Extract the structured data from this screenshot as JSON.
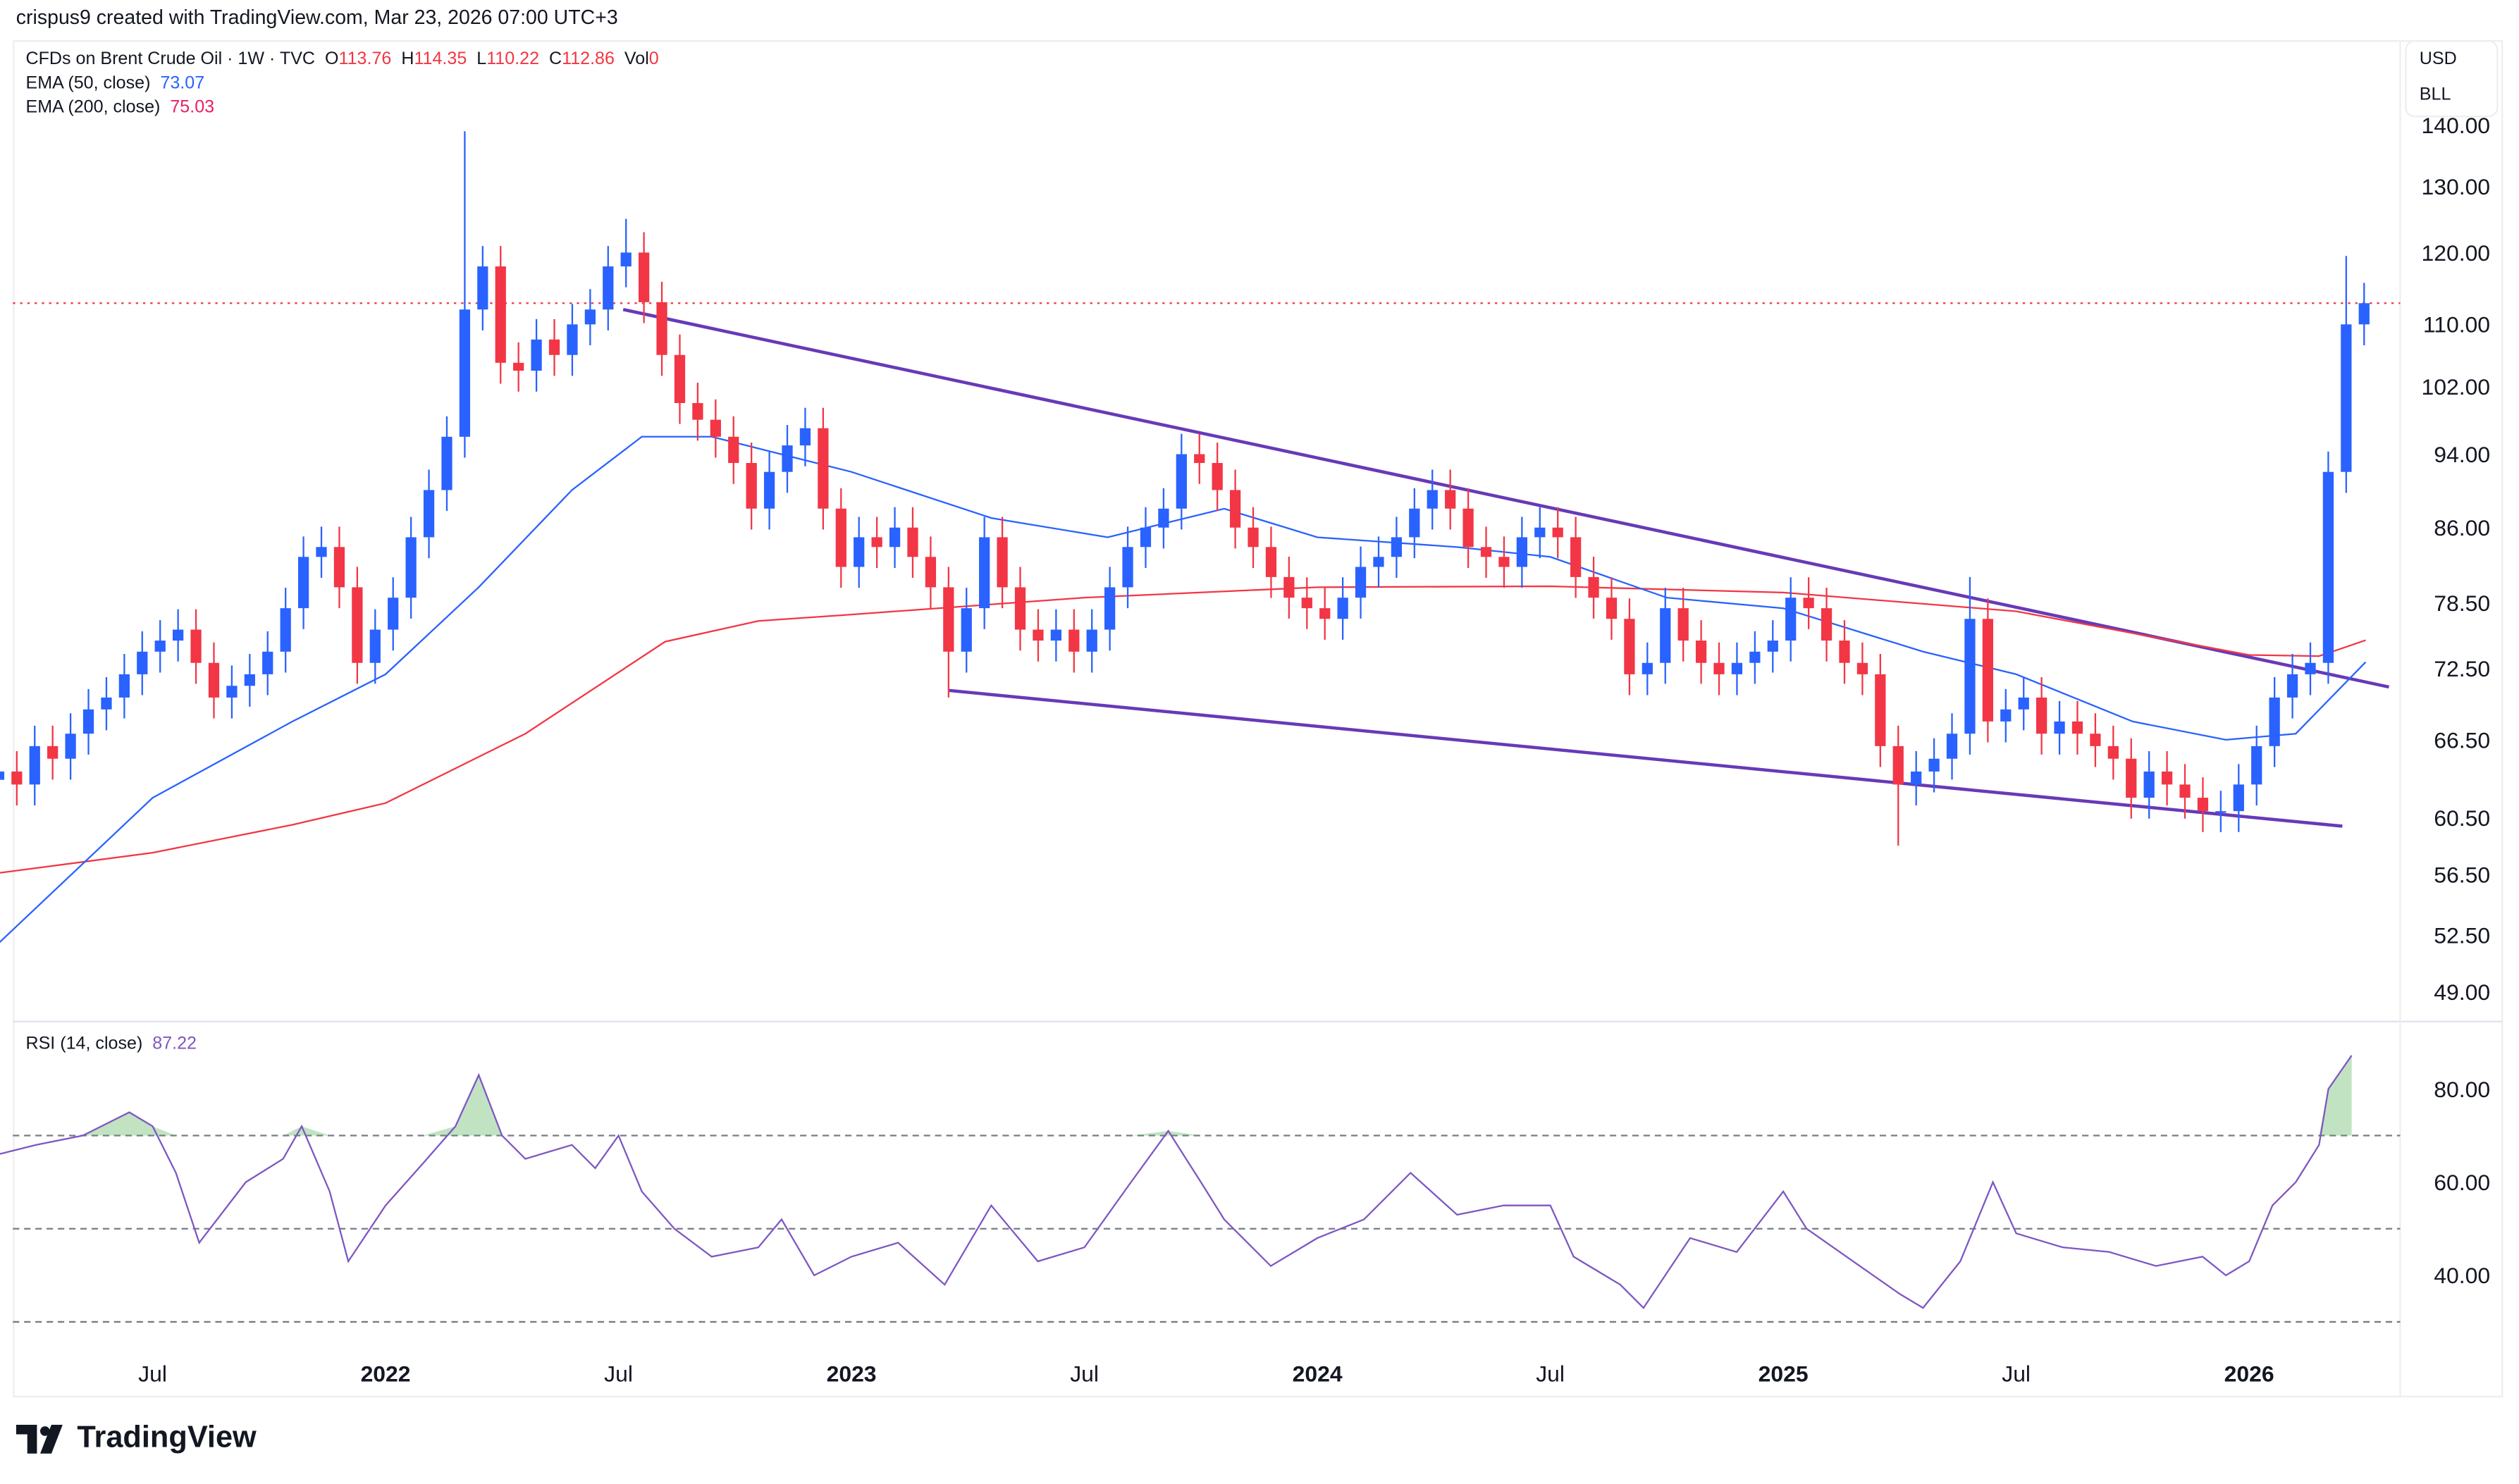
{
  "credit": "crispus9 created with TradingView.com, Mar 23, 2026 07:00 UTC+3",
  "legend": {
    "symbol": "CFDs on Brent Crude Oil · 1W · TVC",
    "o_label": "O",
    "o": "113.76",
    "h_label": "H",
    "h": "114.35",
    "l_label": "L",
    "l": "110.22",
    "c_label": "C",
    "c": "112.86",
    "vol_label": "Vol",
    "vol": "0",
    "ema50_label": "EMA (50, close)",
    "ema50": "73.07",
    "ema200_label": "EMA (200, close)",
    "ema200": "75.03",
    "rsi_label": "RSI (14, close)",
    "rsi": "87.22"
  },
  "units": {
    "currency": "USD",
    "unit": "BLL"
  },
  "logo": "TradingView",
  "colors": {
    "up": "#2962ff",
    "down": "#f23645",
    "ema50": "#2962ff",
    "ema200": "#f23645",
    "trend": "#673ab7",
    "rsi": "#7e57c2"
  },
  "chart_data": [
    {
      "type": "candlestick",
      "title": "CFDs on Brent Crude Oil · 1W · TVC",
      "scale": "log",
      "ylim": [
        47,
        150
      ],
      "y_ticks": [
        "140.00",
        "130.00",
        "120.00",
        "110.00",
        "102.00",
        "94.00",
        "86.00",
        "78.50",
        "72.50",
        "66.50",
        "60.50",
        "56.50",
        "52.50",
        "49.00"
      ],
      "x_ticks": [
        {
          "label": "Jul",
          "t": 2021.5
        },
        {
          "label": "2022",
          "t": 2022.0,
          "bold": true
        },
        {
          "label": "Jul",
          "t": 2022.5
        },
        {
          "label": "2023",
          "t": 2023.0,
          "bold": true
        },
        {
          "label": "Jul",
          "t": 2023.5
        },
        {
          "label": "2024",
          "t": 2024.0,
          "bold": true
        },
        {
          "label": "Jul",
          "t": 2024.5
        },
        {
          "label": "2025",
          "t": 2025.0,
          "bold": true
        },
        {
          "label": "Jul",
          "t": 2025.5
        },
        {
          "label": "2026",
          "t": 2026.0,
          "bold": true
        }
      ],
      "start": 2021.17,
      "step_years": 0.03846,
      "closes": [
        64,
        63,
        66,
        65,
        67,
        69,
        70,
        72,
        74,
        75,
        76,
        73,
        70,
        71,
        72,
        74,
        78,
        83,
        84,
        80,
        73,
        76,
        79,
        85,
        90,
        96,
        112,
        118,
        105,
        104,
        108,
        106,
        110,
        112,
        118,
        120,
        113,
        106,
        100,
        98,
        96,
        93,
        88,
        92,
        95,
        97,
        88,
        82,
        85,
        84,
        86,
        83,
        80,
        74,
        78,
        85,
        80,
        76,
        75,
        76,
        74,
        76,
        80,
        84,
        86,
        88,
        94,
        93,
        90,
        86,
        84,
        81,
        79,
        78,
        77,
        79,
        82,
        83,
        85,
        88,
        90,
        88,
        84,
        83,
        82,
        85,
        86,
        85,
        81,
        79,
        77,
        72,
        73,
        78,
        75,
        73,
        72,
        73,
        74,
        75,
        79,
        78,
        75,
        73,
        72,
        66,
        63,
        64,
        65,
        67,
        77,
        68,
        69,
        70,
        67,
        68,
        67,
        66,
        65,
        62,
        64,
        63,
        62,
        61,
        61,
        63,
        66,
        70,
        72,
        73,
        92,
        110,
        112.86
      ],
      "notable_highs": {
        "26": 139,
        "35": 125,
        "110": 81,
        "131": 119.5
      },
      "notable_lows": {
        "53": 70,
        "106": 58.5
      },
      "last_price": 112.86,
      "ema50": [
        [
          2021.17,
          52
        ],
        [
          2021.5,
          62
        ],
        [
          2021.8,
          68
        ],
        [
          2022.0,
          72
        ],
        [
          2022.2,
          80
        ],
        [
          2022.4,
          90
        ],
        [
          2022.55,
          96
        ],
        [
          2022.7,
          96
        ],
        [
          2023.0,
          92
        ],
        [
          2023.3,
          87
        ],
        [
          2023.55,
          85
        ],
        [
          2023.8,
          88
        ],
        [
          2024.0,
          85
        ],
        [
          2024.3,
          84
        ],
        [
          2024.5,
          83
        ],
        [
          2024.75,
          79
        ],
        [
          2025.0,
          78
        ],
        [
          2025.3,
          74
        ],
        [
          2025.5,
          72
        ],
        [
          2025.75,
          68
        ],
        [
          2025.95,
          66.5
        ],
        [
          2026.1,
          67
        ],
        [
          2026.25,
          73.07
        ]
      ],
      "ema200": [
        [
          2021.17,
          56.6
        ],
        [
          2021.5,
          58
        ],
        [
          2021.8,
          60
        ],
        [
          2022.0,
          61.6
        ],
        [
          2022.3,
          67
        ],
        [
          2022.6,
          74.9
        ],
        [
          2022.8,
          76.8
        ],
        [
          2023.0,
          77.4
        ],
        [
          2023.5,
          79
        ],
        [
          2024.0,
          80
        ],
        [
          2024.5,
          80.1
        ],
        [
          2025.0,
          79.5
        ],
        [
          2025.5,
          77.7
        ],
        [
          2026.0,
          73.7
        ],
        [
          2026.15,
          73.6
        ],
        [
          2026.25,
          75.03
        ]
      ],
      "trendlines": [
        {
          "name": "upper",
          "from": [
            2022.51,
            112
          ],
          "to": [
            2026.3,
            70.9
          ]
        },
        {
          "name": "lower",
          "from": [
            2023.21,
            70.6
          ],
          "to": [
            2026.2,
            59.9
          ]
        }
      ]
    },
    {
      "type": "line",
      "title": "RSI (14, close)",
      "ylim": [
        30,
        87
      ],
      "y_ticks": [
        "80.00",
        "60.00",
        "40.00"
      ],
      "bands": [
        70,
        50,
        30
      ],
      "points": [
        [
          2021.17,
          66
        ],
        [
          2021.25,
          68
        ],
        [
          2021.35,
          70
        ],
        [
          2021.45,
          75
        ],
        [
          2021.5,
          72
        ],
        [
          2021.55,
          62
        ],
        [
          2021.6,
          47
        ],
        [
          2021.7,
          60
        ],
        [
          2021.78,
          65
        ],
        [
          2021.82,
          72
        ],
        [
          2021.88,
          58
        ],
        [
          2021.92,
          43
        ],
        [
          2022.0,
          55
        ],
        [
          2022.08,
          64
        ],
        [
          2022.15,
          72
        ],
        [
          2022.2,
          83
        ],
        [
          2022.25,
          70
        ],
        [
          2022.3,
          65
        ],
        [
          2022.4,
          68
        ],
        [
          2022.45,
          63
        ],
        [
          2022.5,
          70
        ],
        [
          2022.55,
          58
        ],
        [
          2022.62,
          50
        ],
        [
          2022.7,
          44
        ],
        [
          2022.8,
          46
        ],
        [
          2022.85,
          52
        ],
        [
          2022.92,
          40
        ],
        [
          2023.0,
          44
        ],
        [
          2023.1,
          47
        ],
        [
          2023.2,
          38
        ],
        [
          2023.3,
          55
        ],
        [
          2023.4,
          43
        ],
        [
          2023.5,
          46
        ],
        [
          2023.6,
          60
        ],
        [
          2023.68,
          71
        ],
        [
          2023.75,
          60
        ],
        [
          2023.8,
          52
        ],
        [
          2023.9,
          42
        ],
        [
          2024.0,
          48
        ],
        [
          2024.1,
          52
        ],
        [
          2024.2,
          62
        ],
        [
          2024.3,
          53
        ],
        [
          2024.4,
          55
        ],
        [
          2024.5,
          55
        ],
        [
          2024.55,
          44
        ],
        [
          2024.65,
          38
        ],
        [
          2024.7,
          33
        ],
        [
          2024.8,
          48
        ],
        [
          2024.9,
          45
        ],
        [
          2025.0,
          58
        ],
        [
          2025.05,
          50
        ],
        [
          2025.15,
          43
        ],
        [
          2025.25,
          36
        ],
        [
          2025.3,
          33
        ],
        [
          2025.38,
          43
        ],
        [
          2025.45,
          60
        ],
        [
          2025.5,
          49
        ],
        [
          2025.6,
          46
        ],
        [
          2025.7,
          45
        ],
        [
          2025.8,
          42
        ],
        [
          2025.9,
          44
        ],
        [
          2025.95,
          40
        ],
        [
          2026.0,
          43
        ],
        [
          2026.05,
          55
        ],
        [
          2026.1,
          60
        ],
        [
          2026.15,
          68
        ],
        [
          2026.17,
          80
        ],
        [
          2026.22,
          87.22
        ]
      ]
    }
  ]
}
